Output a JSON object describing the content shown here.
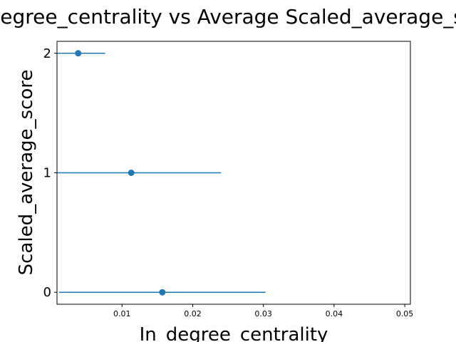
{
  "chart_data": {
    "type": "scatter",
    "title": "In_degree_centrality vs Average Scaled_average_score",
    "xlabel": "In_degree_centrality",
    "ylabel": "Scaled_average_score",
    "xlim": [
      0.0008,
      0.0508
    ],
    "ylim": [
      -0.1,
      2.1
    ],
    "x_ticks": [
      0.01,
      0.02,
      0.03,
      0.04,
      0.05
    ],
    "x_tick_labels": [
      "0.01",
      "0.02",
      "0.03",
      "0.04",
      "0.05"
    ],
    "y_ticks": [
      0,
      1,
      2
    ],
    "y_tick_labels": [
      "0",
      "1",
      "2"
    ],
    "grid": false,
    "color": "#1f77b4",
    "points": [
      {
        "y": 2,
        "x": 0.0038,
        "xerr": 0.0038
      },
      {
        "y": 1,
        "x": 0.0113,
        "xerr": 0.0127
      },
      {
        "y": 0,
        "x": 0.0157,
        "xerr": 0.0146
      }
    ]
  }
}
